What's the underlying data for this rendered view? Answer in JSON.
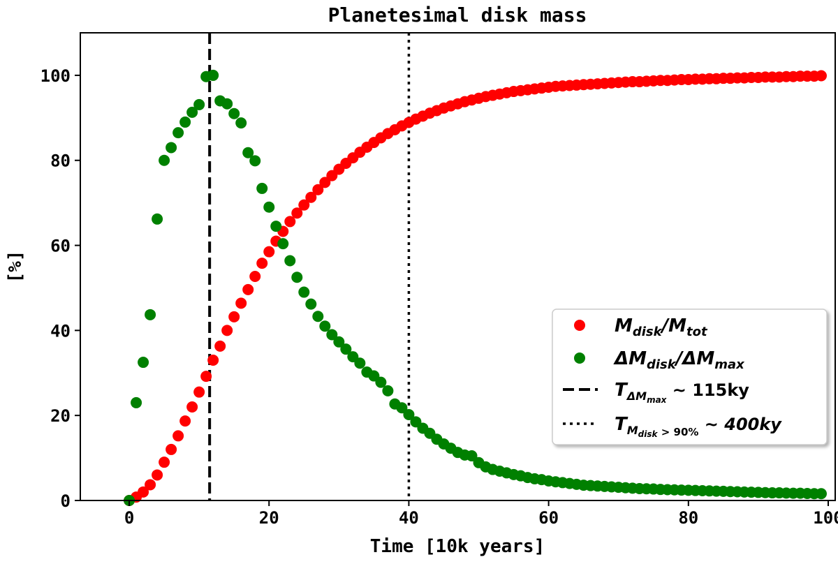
{
  "chart_data": {
    "type": "scatter",
    "title": "Planetesimal disk mass",
    "xlabel": "Time [10k years]",
    "ylabel": "[%]",
    "xlim": [
      -7,
      101
    ],
    "ylim": [
      0,
      110
    ],
    "xticks": [
      0,
      20,
      40,
      60,
      80,
      100
    ],
    "yticks": [
      0,
      20,
      40,
      60,
      80,
      100
    ],
    "grid": false,
    "legend_position": "center-right",
    "series": [
      {
        "name": "M_disk/M_tot",
        "color": "#ff0000",
        "x": [
          0,
          1,
          2,
          3,
          4,
          5,
          6,
          7,
          8,
          9,
          10,
          11,
          12,
          13,
          14,
          15,
          16,
          17,
          18,
          19,
          20,
          21,
          22,
          23,
          24,
          25,
          26,
          27,
          28,
          29,
          30,
          31,
          32,
          33,
          34,
          35,
          36,
          37,
          38,
          39,
          40,
          41,
          42,
          43,
          44,
          45,
          46,
          47,
          48,
          49,
          50,
          51,
          52,
          53,
          54,
          55,
          56,
          57,
          58,
          59,
          60,
          61,
          62,
          63,
          64,
          65,
          66,
          67,
          68,
          69,
          70,
          71,
          72,
          73,
          74,
          75,
          76,
          77,
          78,
          79,
          80,
          81,
          82,
          83,
          84,
          85,
          86,
          87,
          88,
          89,
          90,
          91,
          92,
          93,
          94,
          95,
          96,
          97,
          98,
          99
        ],
        "y": [
          0,
          0.8,
          2,
          3.7,
          6,
          9,
          12,
          15.2,
          18.7,
          22,
          25.5,
          29.2,
          33,
          36.3,
          40,
          43.2,
          46.4,
          49.6,
          52.7,
          55.8,
          58.5,
          61,
          63.3,
          65.6,
          67.6,
          69.5,
          71.3,
          73.1,
          74.8,
          76.4,
          77.9,
          79.3,
          80.6,
          81.9,
          83.1,
          84.2,
          85.3,
          86.3,
          87.2,
          88.1,
          88.9,
          89.7,
          90.4,
          91.1,
          91.7,
          92.3,
          92.8,
          93.3,
          93.8,
          94.2,
          94.6,
          95,
          95.3,
          95.6,
          95.9,
          96.2,
          96.4,
          96.6,
          96.8,
          97,
          97.2,
          97.4,
          97.5,
          97.6,
          97.7,
          97.8,
          97.9,
          98,
          98.1,
          98.2,
          98.3,
          98.4,
          98.5,
          98.5,
          98.6,
          98.7,
          98.8,
          98.8,
          98.9,
          99,
          99,
          99.1,
          99.1,
          99.2,
          99.2,
          99.3,
          99.3,
          99.4,
          99.4,
          99.5,
          99.5,
          99.6,
          99.6,
          99.6,
          99.7,
          99.7,
          99.8,
          99.8,
          99.8,
          99.9
        ]
      },
      {
        "name": "ΔM_disk/ΔM_max",
        "color": "#008000",
        "x": [
          0,
          1,
          2,
          3,
          4,
          5,
          6,
          7,
          8,
          9,
          10,
          11,
          12,
          13,
          14,
          15,
          16,
          17,
          18,
          19,
          20,
          21,
          22,
          23,
          24,
          25,
          26,
          27,
          28,
          29,
          30,
          31,
          32,
          33,
          34,
          35,
          36,
          37,
          38,
          39,
          40,
          41,
          42,
          43,
          44,
          45,
          46,
          47,
          48,
          49,
          50,
          51,
          52,
          53,
          54,
          55,
          56,
          57,
          58,
          59,
          60,
          61,
          62,
          63,
          64,
          65,
          66,
          67,
          68,
          69,
          70,
          71,
          72,
          73,
          74,
          75,
          76,
          77,
          78,
          79,
          80,
          81,
          82,
          83,
          84,
          85,
          86,
          87,
          88,
          89,
          90,
          91,
          92,
          93,
          94,
          95,
          96,
          97,
          98,
          99
        ],
        "y": [
          0,
          23,
          32.5,
          43.7,
          66.2,
          80,
          83,
          86.5,
          89,
          91.3,
          93.1,
          99.7,
          100,
          94,
          93.3,
          91,
          88.8,
          81.8,
          79.9,
          73.4,
          69,
          64.5,
          60.4,
          56.4,
          52.5,
          49,
          46.2,
          43.3,
          41,
          39,
          37.3,
          35.6,
          33.8,
          32.3,
          30.2,
          29.3,
          27.8,
          25.8,
          22.7,
          21.8,
          20.2,
          18.5,
          17,
          15.8,
          14.4,
          13.3,
          12.3,
          11.3,
          10.7,
          10.5,
          8.9,
          7.9,
          7.3,
          6.9,
          6.5,
          6.1,
          5.8,
          5.4,
          5.1,
          4.9,
          4.6,
          4.4,
          4.2,
          4,
          3.8,
          3.6,
          3.5,
          3.4,
          3.3,
          3.2,
          3.1,
          3,
          2.9,
          2.8,
          2.75,
          2.7,
          2.6,
          2.55,
          2.5,
          2.45,
          2.4,
          2.35,
          2.3,
          2.25,
          2.2,
          2.15,
          2.1,
          2.05,
          2,
          1.95,
          1.9,
          1.85,
          1.8,
          1.8,
          1.75,
          1.7,
          1.7,
          1.65,
          1.6,
          1.6
        ]
      }
    ],
    "vlines": [
      {
        "x": 11.5,
        "style": "dashed",
        "color": "#000000"
      },
      {
        "x": 40,
        "style": "dotted",
        "color": "#000000"
      }
    ],
    "legend": [
      {
        "kind": "marker",
        "color": "#ff0000",
        "main": "M",
        "sub": "disk",
        "mid": "/M",
        "sub2": "tot",
        "tail": ""
      },
      {
        "kind": "marker",
        "color": "#008000",
        "main": "ΔM",
        "sub": "disk",
        "mid": "/ΔM",
        "sub2": "max",
        "tail": ""
      },
      {
        "kind": "dashed",
        "main": "T",
        "sub": "ΔM",
        "subsub": "max",
        "tail": " ~ 115ky"
      },
      {
        "kind": "dotted",
        "main": "T",
        "sub": "M",
        "subsub": "disk",
        "subtail": " > 90%",
        "tail": " ~ 400ky"
      }
    ]
  }
}
